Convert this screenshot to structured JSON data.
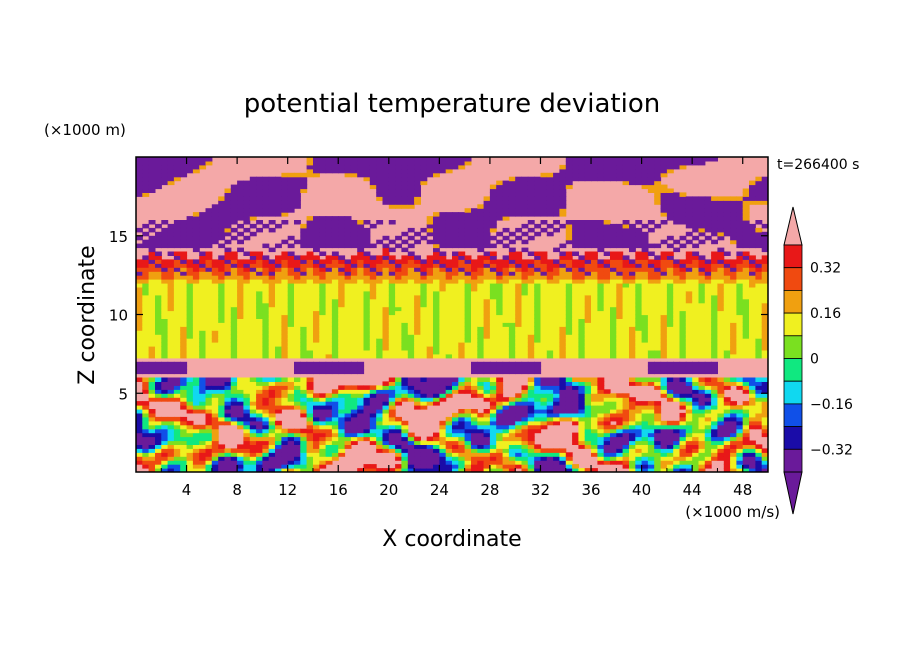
{
  "chart_data": {
    "type": "heatmap",
    "title": "potential temperature deviation",
    "xlabel": "X coordinate",
    "ylabel": "Z coordinate",
    "x_unit": "(×1000 m/s)",
    "y_unit": "(×1000 m)",
    "time_label": "t=266400 s",
    "xlim": [
      0,
      50
    ],
    "ylim": [
      0,
      20
    ],
    "x_ticks": [
      "4",
      "8",
      "12",
      "16",
      "20",
      "24",
      "28",
      "32",
      "36",
      "40",
      "44",
      "48"
    ],
    "y_ticks": [
      "5",
      "10",
      "15"
    ],
    "colorbar": {
      "levels": [
        -0.4,
        -0.32,
        -0.24,
        -0.16,
        -0.08,
        0,
        0.08,
        0.16,
        0.24,
        0.32,
        0.4
      ],
      "tick_labels": [
        "0.32",
        "0.16",
        "0",
        "−0.16",
        "−0.32"
      ],
      "colors": [
        "#6a1a9a",
        "#1a0ca8",
        "#1050e8",
        "#10d8f0",
        "#10e880",
        "#7ae020",
        "#f0f020",
        "#f0a010",
        "#f04a10",
        "#e81818",
        "#f4a8a8"
      ],
      "extend": "both"
    },
    "structure": [
      {
        "z_range": [
          0,
          6
        ],
        "pattern": "turbulent eddies spanning full colour range"
      },
      {
        "z_range": [
          6,
          7
        ],
        "pattern": "positive deviation layer (>0.4) with negative patches on top"
      },
      {
        "z_range": [
          7,
          12
        ],
        "pattern": "near-zero deviation (0 to 0.08)"
      },
      {
        "z_range": [
          12,
          14
        ],
        "pattern": "stratified positive bands (0.08 to 0.32)"
      },
      {
        "z_range": [
          14,
          20
        ],
        "pattern": "large positive (>0.4) with large negative (<-0.4) patches"
      }
    ]
  }
}
